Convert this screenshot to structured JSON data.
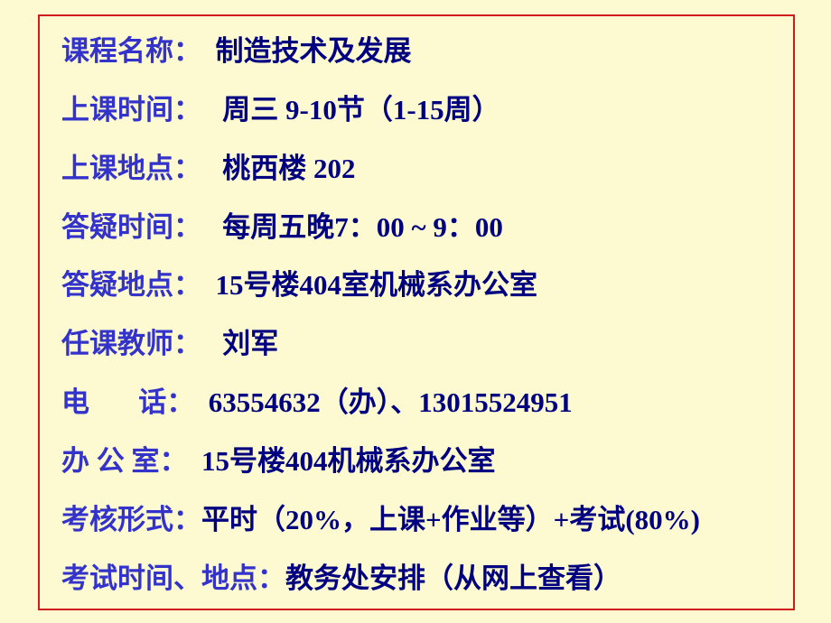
{
  "page": {
    "background_color": "#fdfad1",
    "border_color": "#d01c1c",
    "label_color": "#3333cc",
    "value_color": "#000080",
    "font_size": 31,
    "font_weight": "bold"
  },
  "rows": [
    {
      "label": "课程名称：",
      "value": "  制造技术及发展"
    },
    {
      "label": "上课时间：",
      "value": "   周三 9-10节（1-15周）"
    },
    {
      "label": "上课地点：",
      "value": "   桃西楼 202"
    },
    {
      "label": "答疑时间：",
      "value": "   每周五晚7：00 ~ 9：00"
    },
    {
      "label": "答疑地点：",
      "value": "  15号楼404室机械系办公室"
    },
    {
      "label": "任课教师：",
      "value": "   刘军"
    },
    {
      "label": "电       话：",
      "value": "  63554632（办）、13015524951"
    },
    {
      "label": "办 公 室：",
      "value": "  15号楼404机械系办公室"
    },
    {
      "label": "考核形式：",
      "value": "平时（20%，上课+作业等）+考试(80%)"
    },
    {
      "label": "考试时间、地点：",
      "value": "教务处安排（从网上查看）"
    }
  ]
}
